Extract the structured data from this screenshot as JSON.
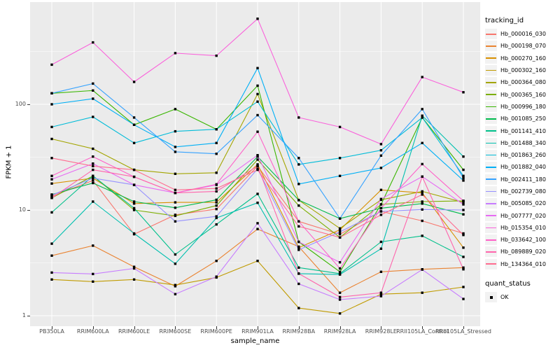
{
  "figure": {
    "panel_bg": "#EBEBEB",
    "grid_color": "#FFFFFF",
    "tick_mark_color": "#333333",
    "axis_text_color": "#4D4D4D"
  },
  "legend": {
    "tracking_title": "tracking_id",
    "quant_title": "quant_status",
    "quant_ok_label": "OK",
    "quant_ok_marker": "black-square",
    "key_bg": "#F2F2F2"
  },
  "chart_data": {
    "type": "line",
    "title": "",
    "xlabel": "sample_name",
    "ylabel": "FPKM + 1",
    "y_scale": "log10",
    "ylim": [
      1,
      900
    ],
    "y_ticks": [
      100,
      10,
      1
    ],
    "y_minor_ticks": [
      3.162,
      31.62,
      316.2
    ],
    "grid": true,
    "legend_position": "right",
    "point_marker": {
      "shape": "square",
      "color": "#000000",
      "size": 3.4
    },
    "categories": [
      "PB350LA",
      "RRIM600LA",
      "RRIM600LE",
      "RRIM600SE",
      "RRIM600PE",
      "RRIM901LA",
      "RRIM928BA",
      "RRIM928LA",
      "RRIM928LE",
      "RRII105LA_Control",
      "RRII105LA_Stressed"
    ],
    "series": [
      {
        "name": "Hb_000016_030",
        "color": "#F8766D",
        "values": [
          13.5,
          19,
          5.9,
          9,
          10.2,
          26,
          7.8,
          5.9,
          9.7,
          7.9,
          6
        ]
      },
      {
        "name": "Hb_000198_070",
        "color": "#EA8331",
        "values": [
          3.7,
          4.6,
          2.9,
          1.9,
          3.3,
          6.6,
          4.5,
          1.65,
          2.6,
          2.75,
          2.85
        ]
      },
      {
        "name": "Hb_000270_160",
        "color": "#D89000",
        "values": [
          17.8,
          20,
          11.5,
          11.8,
          11.8,
          27,
          4.4,
          6.5,
          15.5,
          14.5,
          4.4
        ]
      },
      {
        "name": "Hb_000302_160",
        "color": "#C09B00",
        "values": [
          2.2,
          2.1,
          2.2,
          1.95,
          2.3,
          3.3,
          1.18,
          1.05,
          1.6,
          1.65,
          1.87
        ]
      },
      {
        "name": "Hb_000364_080",
        "color": "#A3A500",
        "values": [
          47,
          38,
          24,
          22,
          22.5,
          125,
          12.4,
          6.7,
          12.5,
          15,
          11.8
        ]
      },
      {
        "name": "Hb_000365_160",
        "color": "#7CAE00",
        "values": [
          13,
          21,
          10,
          8.8,
          11,
          30,
          11,
          5.5,
          11.3,
          12,
          12.2
        ]
      },
      {
        "name": "Hb_000996_180",
        "color": "#39B600",
        "values": [
          127,
          135,
          64,
          90,
          58,
          150,
          5,
          2.6,
          11.3,
          75,
          24
        ]
      },
      {
        "name": "Hb_001085_250",
        "color": "#00BB4E",
        "values": [
          14,
          18,
          12,
          10.5,
          12.5,
          32,
          12.4,
          8.3,
          10.4,
          11.5,
          9.1
        ]
      },
      {
        "name": "Hb_001141_410",
        "color": "#00C08B",
        "values": [
          9.5,
          21,
          10.4,
          3.8,
          7.3,
          14.2,
          2.85,
          2.5,
          5,
          5.7,
          3.6
        ]
      },
      {
        "name": "Hb_001488_340",
        "color": "#00C0AF",
        "values": [
          4.8,
          12,
          6,
          3.1,
          8.4,
          11.7,
          2.5,
          2.45,
          4.3,
          78,
          32
        ]
      },
      {
        "name": "Hb_001863_260",
        "color": "#00BCD8",
        "values": [
          61,
          76,
          43,
          55.5,
          58,
          106,
          27,
          31,
          36.7,
          75,
          21
        ]
      },
      {
        "name": "Hb_001882_040",
        "color": "#00B0F6",
        "values": [
          100,
          113,
          64,
          39.5,
          43,
          220,
          17.6,
          21,
          25,
          43,
          19
        ]
      },
      {
        "name": "Hb_002411_180",
        "color": "#35A2FF",
        "values": [
          127,
          157,
          75,
          35.5,
          34,
          79,
          31,
          8.3,
          32.7,
          90,
          20
        ]
      },
      {
        "name": "Hb_002739_080",
        "color": "#9590FF",
        "values": [
          13.8,
          20,
          17.3,
          7.8,
          8.7,
          24.5,
          4.2,
          6.2,
          9.7,
          10.1,
          10
        ]
      },
      {
        "name": "Hb_005085_020",
        "color": "#C77CFF",
        "values": [
          2.56,
          2.48,
          2.8,
          1.6,
          2.34,
          7.5,
          2,
          1.42,
          1.53,
          2.73,
          1.44
        ]
      },
      {
        "name": "Hb_007777_020",
        "color": "#E76BF3",
        "values": [
          19.5,
          27.5,
          17.3,
          14.5,
          17.3,
          33,
          5,
          3.2,
          12.7,
          20.7,
          11.3
        ]
      },
      {
        "name": "Hb_015354_010",
        "color": "#FA62DB",
        "values": [
          237,
          385,
          163,
          305,
          288,
          645,
          75,
          61,
          42,
          181,
          130
        ]
      },
      {
        "name": "Hb_033642_100",
        "color": "#FF61C9",
        "values": [
          21,
          32,
          20.6,
          14.5,
          17.5,
          55,
          7.8,
          2.8,
          10.4,
          27.2,
          12.2
        ]
      },
      {
        "name": "Hb_089889_020",
        "color": "#FF65AC",
        "values": [
          13,
          24,
          20.6,
          14.5,
          15,
          26,
          2.5,
          1.5,
          1.65,
          20.7,
          2.75
        ]
      },
      {
        "name": "Hb_134364_010",
        "color": "#FF6C90",
        "values": [
          31,
          26,
          24,
          15.5,
          16,
          24,
          7,
          5.5,
          9,
          14,
          5.8
        ]
      }
    ]
  }
}
